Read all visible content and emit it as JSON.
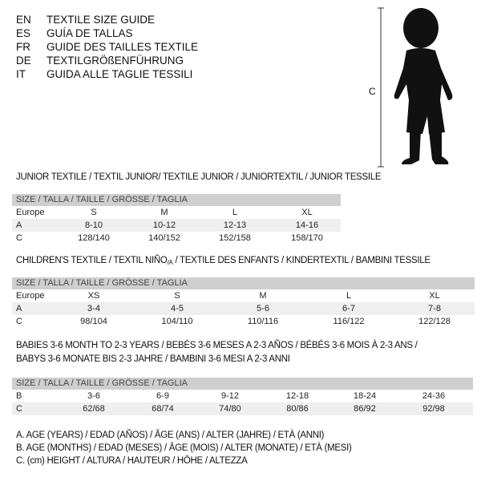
{
  "languages": [
    {
      "code": "EN",
      "text": "TEXTILE SIZE GUIDE"
    },
    {
      "code": "ES",
      "text": "GUÍA DE TALLAS"
    },
    {
      "code": "FR",
      "text": "GUIDE DES TAILLES TEXTILE"
    },
    {
      "code": "DE",
      "text": "TEXTILGRÖßENFÜHRUNG"
    },
    {
      "code": "IT",
      "text": "GUIDA ALLE TAGLIE TESSILI"
    }
  ],
  "figure": {
    "label": "C",
    "icon": "baby-silhouette"
  },
  "size_header": "SIZE / TALLA / TAILLE / GRÖSSE / TAGLIA",
  "junior": {
    "title": "JUNIOR TEXTILE / TEXTIL JUNIOR/ TEXTILE JUNIOR / JUNIORTEXTIL / JUNIOR TESSILE",
    "rows": [
      {
        "label": "Europe",
        "values": [
          "S",
          "M",
          "L",
          "XL"
        ]
      },
      {
        "label": "A",
        "values": [
          "8-10",
          "10-12",
          "12-13",
          "14-16"
        ]
      },
      {
        "label": "C",
        "values": [
          "128/140",
          "140/152",
          "152/158",
          "158/170"
        ]
      }
    ]
  },
  "children": {
    "title_main": "CHILDREN'S TEXTILE / TEXTIL NIÑO",
    "title_sub": "/A",
    "title_rest": " / TEXTILE DES ENFANTS / KINDERTEXTIL / BAMBINI TESSILE",
    "rows": [
      {
        "label": "Europe",
        "values": [
          "XS",
          "S",
          "M",
          "L",
          "XL"
        ]
      },
      {
        "label": "A",
        "values": [
          "3-4",
          "4-5",
          "5-6",
          "6-7",
          "7-8"
        ]
      },
      {
        "label": "C",
        "values": [
          "98/104",
          "104/110",
          "110/116",
          "116/122",
          "122/128"
        ]
      }
    ]
  },
  "babies": {
    "title_line1": "BABIES 3-6 MONTH TO 2-3 YEARS / BEBÉS 3-6 MESES A 2-3 AÑOS / BÉBÉS 3-6 MOIS À 2-3 ANS /",
    "title_line2": "BABYS 3-6 MONATE BIS 2-3 JAHRE / BAMBINI 3-6 MESI A 2-3 ANNI",
    "rows": [
      {
        "label": "B",
        "values": [
          "3-6",
          "6-9",
          "9-12",
          "12-18",
          "18-24",
          "24-36"
        ]
      },
      {
        "label": "C",
        "values": [
          "62/68",
          "68/74",
          "74/80",
          "80/86",
          "86/92",
          "92/98"
        ]
      }
    ]
  },
  "legend": [
    "A. AGE (YEARS) / EDAD (AÑOS) / ÂGE (ANS) / ALTER (JAHRE) / ETÀ (ANNI)",
    "B. AGE (MONTHS) / EDAD (MESES) / ÂGE (MOIS) / ALTER (MONATE) / ETÀ (MESI)",
    "C. (cm) HEIGHT / ALTURA / HAUTEUR / HÖHE / ALTEZZA"
  ]
}
